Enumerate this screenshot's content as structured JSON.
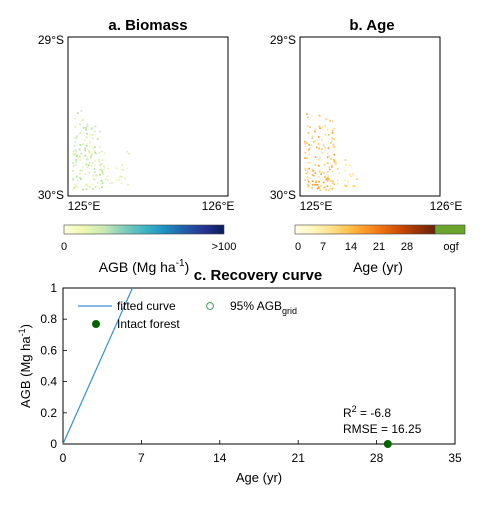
{
  "panel_a": {
    "title": "a. Biomass",
    "lat_top": "29°S",
    "lat_bottom": "30°S",
    "lon_left": "125°E",
    "lon_right": "126°E",
    "colorbar": {
      "colors": [
        "#ffffd9",
        "#edf8b1",
        "#c7e9b4",
        "#7fcdbb",
        "#41b6c4",
        "#1d91c0",
        "#225ea8",
        "#253494",
        "#081d58"
      ],
      "min_label": "0",
      "max_label": ">100",
      "label": "AGB (Mg ha",
      "label_sup": "-1",
      "label_end": ")"
    }
  },
  "panel_b": {
    "title": "b. Age",
    "lat_top": "29°S",
    "lat_bottom": "30°S",
    "lon_left": "125°E",
    "lon_right": "126°E",
    "colorbar": {
      "colors": [
        "#ffffe5",
        "#fff7bc",
        "#fee391",
        "#fec44f",
        "#fe9929",
        "#ec7014",
        "#cc4c02",
        "#993404",
        "#662506"
      ],
      "ticks": [
        "0",
        "7",
        "14",
        "21",
        "28"
      ],
      "ogf_label": "ogf",
      "ogf_color": "#6aa62b",
      "label": "Age (yr)"
    }
  },
  "panel_c": {
    "title": "c. Recovery curve",
    "legend": {
      "fitted": "fitted curve",
      "intact": "Intact forest",
      "grid_prefix": "95% AGB",
      "grid_sub": "grid"
    },
    "stats": {
      "r2_prefix": "R",
      "r2_sup": "2",
      "r2_value": " = -6.8",
      "rmse": "RMSE = 16.25"
    },
    "colors": {
      "curve": "#3a8fd0",
      "intact": "#006400",
      "grid_marker": "#2e8b57"
    }
  },
  "chart_data": {
    "type": "scatter",
    "title": "c. Recovery curve",
    "xlabel": "Age (yr)",
    "ylabel": "AGB (Mg ha-1)",
    "xlim": [
      0,
      35
    ],
    "ylim": [
      0,
      1
    ],
    "xticks": [
      0,
      7,
      14,
      21,
      28,
      35
    ],
    "yticks": [
      0,
      0.2,
      0.4,
      0.6,
      0.8,
      1
    ],
    "series": [
      {
        "name": "fitted curve",
        "kind": "line",
        "x": [
          0,
          6.2
        ],
        "y": [
          0,
          1.0
        ]
      },
      {
        "name": "Intact forest",
        "kind": "point",
        "x": [
          29
        ],
        "y": [
          0
        ]
      }
    ],
    "annotations": [
      "R2 = -6.8",
      "RMSE = 16.25"
    ]
  }
}
